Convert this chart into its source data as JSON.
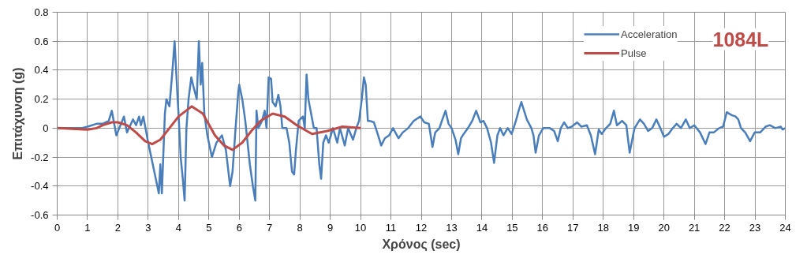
{
  "chart_data": {
    "type": "line",
    "xlabel": "Χρόνος (sec)",
    "ylabel": "Επιτάχυνση (g)",
    "xlim": [
      0,
      24
    ],
    "xticks": [
      0,
      1,
      2,
      3,
      4,
      5,
      6,
      7,
      8,
      9,
      10,
      11,
      12,
      13,
      14,
      15,
      16,
      17,
      18,
      19,
      20,
      21,
      22,
      23,
      24
    ],
    "ylim": [
      -0.6,
      0.8
    ],
    "yticks": [
      -0.6,
      -0.4,
      -0.2,
      0,
      0.2,
      0.4,
      0.6,
      0.8
    ],
    "grid": true,
    "legend": "top right",
    "marker": "none",
    "line_style": "solid",
    "annotations": [
      "1084L"
    ],
    "series": [
      {
        "name": "Acceleration",
        "color": "#4a7ebb",
        "x": [
          0,
          0.3,
          0.8,
          1.0,
          1.3,
          1.5,
          1.7,
          1.8,
          1.95,
          2.2,
          2.3,
          2.5,
          2.6,
          2.7,
          2.76,
          2.84,
          3.0,
          3.1,
          3.25,
          3.35,
          3.4,
          3.45,
          3.55,
          3.6,
          3.7,
          3.8,
          3.87,
          3.92,
          3.97,
          4.0,
          4.07,
          4.14,
          4.2,
          4.26,
          4.33,
          4.42,
          4.5,
          4.6,
          4.67,
          4.73,
          4.78,
          4.85,
          4.95,
          5.1,
          5.25,
          5.43,
          5.56,
          5.7,
          5.78,
          5.88,
          5.97,
          6.0,
          6.1,
          6.2,
          6.35,
          6.45,
          6.53,
          6.57,
          6.63,
          6.75,
          6.84,
          6.9,
          6.97,
          7.05,
          7.1,
          7.2,
          7.29,
          7.36,
          7.42,
          7.56,
          7.65,
          7.74,
          7.81,
          7.87,
          7.96,
          8.1,
          8.16,
          8.22,
          8.28,
          8.37,
          8.46,
          8.55,
          8.64,
          8.7,
          8.77,
          8.86,
          8.95,
          9.09,
          9.23,
          9.32,
          9.48,
          9.59,
          9.75,
          9.86,
          9.95,
          10.04,
          10.11,
          10.17,
          10.24,
          10.3,
          10.44,
          10.58,
          10.68,
          10.8,
          10.94,
          11.07,
          11.25,
          11.39,
          11.57,
          11.75,
          11.97,
          12.1,
          12.25,
          12.37,
          12.46,
          12.6,
          12.68,
          12.8,
          12.9,
          13.0,
          13.13,
          13.22,
          13.31,
          13.4,
          13.54,
          13.68,
          13.81,
          13.95,
          14.05,
          14.17,
          14.3,
          14.4,
          14.51,
          14.6,
          14.71,
          14.85,
          14.98,
          15.12,
          15.21,
          15.3,
          15.39,
          15.48,
          15.63,
          15.7,
          15.77,
          15.88,
          16.02,
          16.24,
          16.38,
          16.5,
          16.6,
          16.71,
          16.83,
          16.96,
          17.14,
          17.28,
          17.46,
          17.59,
          17.73,
          17.85,
          17.95,
          18.09,
          18.23,
          18.35,
          18.45,
          18.62,
          18.76,
          18.87,
          19.03,
          19.21,
          19.34,
          19.48,
          19.61,
          19.75,
          19.88,
          20.0,
          20.15,
          20.29,
          20.42,
          20.56,
          20.72,
          20.85,
          21.0,
          21.19,
          21.37,
          21.5,
          21.64,
          21.82,
          21.95,
          22.07,
          22.23,
          22.36,
          22.45,
          22.54,
          22.68,
          22.84,
          22.99,
          23.17,
          23.35,
          23.49,
          23.67,
          23.85,
          23.91,
          24.0
        ],
        "values": [
          0,
          0.0,
          0.0,
          0.01,
          0.03,
          0.03,
          0.05,
          0.12,
          -0.05,
          0.08,
          -0.03,
          0.06,
          0.02,
          0.08,
          0.02,
          0.08,
          -0.1,
          -0.2,
          -0.35,
          -0.45,
          -0.25,
          -0.45,
          0.1,
          0.2,
          0.15,
          0.4,
          0.6,
          0.4,
          0.2,
          0.1,
          -0.2,
          -0.35,
          -0.5,
          0.0,
          0.2,
          0.35,
          0.28,
          0.2,
          0.6,
          0.3,
          0.45,
          0.1,
          -0.05,
          -0.2,
          -0.1,
          -0.05,
          -0.15,
          -0.4,
          -0.3,
          0.0,
          0.25,
          0.3,
          0.2,
          0.05,
          -0.25,
          -0.4,
          -0.5,
          0.12,
          0.0,
          0.05,
          0.12,
          0.0,
          0.35,
          0.34,
          0.18,
          0.15,
          0.23,
          0.15,
          0.0,
          0.0,
          -0.1,
          -0.3,
          -0.32,
          -0.15,
          0.05,
          0.08,
          0.0,
          0.37,
          0.2,
          0.1,
          0.0,
          0.0,
          -0.25,
          -0.35,
          -0.1,
          -0.05,
          -0.1,
          0.0,
          -0.1,
          0.0,
          -0.12,
          0.0,
          -0.08,
          0.0,
          0.05,
          0.2,
          0.35,
          0.3,
          0.05,
          0.05,
          0.04,
          -0.05,
          -0.12,
          -0.07,
          -0.05,
          0.0,
          -0.07,
          -0.03,
          0.0,
          0.05,
          0.08,
          0.04,
          0.03,
          -0.13,
          -0.03,
          0.0,
          0.05,
          0.12,
          0.03,
          0.0,
          -0.08,
          -0.18,
          -0.07,
          -0.04,
          0.0,
          0.05,
          0.12,
          0.04,
          0.05,
          0.0,
          -0.1,
          -0.24,
          -0.05,
          0.0,
          -0.05,
          0.0,
          -0.04,
          0.05,
          0.12,
          0.18,
          0.12,
          0.06,
          0.0,
          -0.05,
          -0.17,
          -0.05,
          0.0,
          0.0,
          -0.02,
          -0.09,
          0.0,
          0.04,
          0.0,
          0.01,
          0.04,
          0.01,
          0.02,
          -0.05,
          -0.18,
          -0.01,
          -0.04,
          0.0,
          0.03,
          0.12,
          0.02,
          0.05,
          0.02,
          -0.17,
          0.0,
          0.06,
          0.03,
          -0.02,
          0.0,
          0.06,
          0.0,
          -0.06,
          -0.04,
          0.0,
          0.03,
          0.0,
          0.06,
          0.0,
          0.02,
          -0.03,
          -0.11,
          -0.03,
          -0.03,
          0.0,
          0.01,
          0.11,
          0.09,
          0.08,
          0.06,
          0.0,
          -0.03,
          -0.09,
          -0.03,
          -0.03,
          0.01,
          0.02,
          0.0,
          0.01,
          -0.01,
          0.0
        ]
      },
      {
        "name": "Pulse",
        "color": "#be4b48",
        "x": [
          0,
          0.5,
          1.0,
          1.3,
          1.5,
          1.8,
          2.0,
          2.3,
          2.6,
          2.9,
          3.13,
          3.4,
          3.7,
          4.0,
          4.43,
          4.8,
          5.2,
          5.5,
          5.78,
          6.1,
          6.4,
          6.7,
          7.1,
          7.5,
          7.9,
          8.4,
          8.9,
          9.4,
          10.0
        ],
        "values": [
          0,
          -0.005,
          -0.01,
          0.0,
          0.02,
          0.04,
          0.04,
          0.02,
          -0.03,
          -0.09,
          -0.11,
          -0.08,
          0.0,
          0.08,
          0.15,
          0.1,
          -0.05,
          -0.12,
          -0.15,
          -0.1,
          -0.02,
          0.05,
          0.1,
          0.08,
          0.02,
          -0.04,
          -0.02,
          0.01,
          0.0
        ]
      }
    ]
  }
}
